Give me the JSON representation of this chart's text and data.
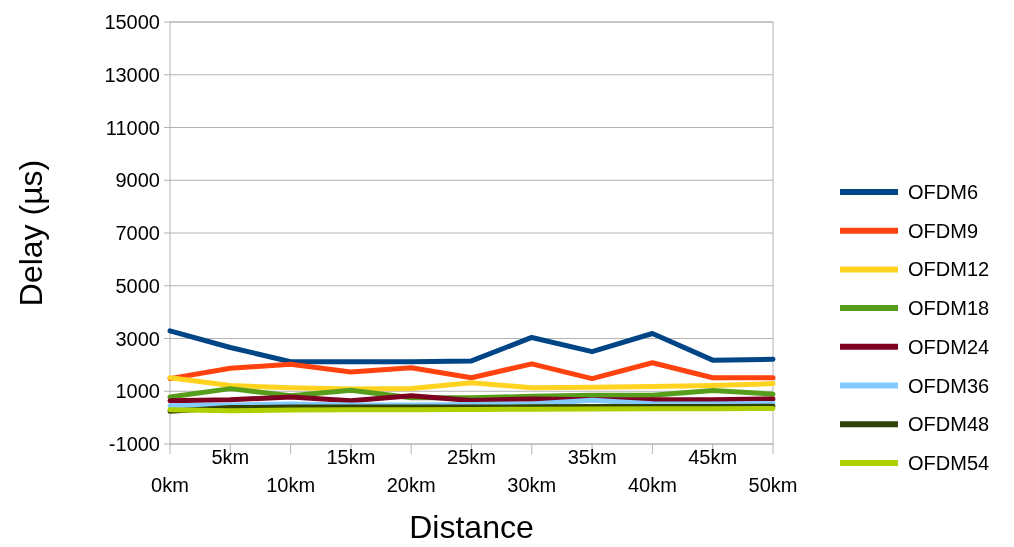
{
  "chart_data": {
    "type": "line",
    "xlabel": "Distance",
    "ylabel": "Delay (µs)",
    "categories": [
      "0km",
      "5km",
      "10km",
      "15km",
      "20km",
      "25km",
      "30km",
      "35km",
      "40km",
      "45km",
      "50km"
    ],
    "ylim": [
      -1000,
      15000
    ],
    "yticks": [
      -1000,
      1000,
      3000,
      5000,
      7000,
      9000,
      11000,
      13000,
      15000
    ],
    "grid": "y",
    "legend": "right",
    "marker": "none",
    "line_style": "solid",
    "series": [
      {
        "name": "OFDM6",
        "color": "#004586",
        "values": [
          3290,
          2660,
          2120,
          2120,
          2120,
          2150,
          3040,
          2500,
          3190,
          2180,
          2210
        ]
      },
      {
        "name": "OFDM9",
        "color": "#ff420e",
        "values": [
          1480,
          1870,
          2020,
          1730,
          1890,
          1510,
          2040,
          1480,
          2080,
          1510,
          1510
        ]
      },
      {
        "name": "OFDM12",
        "color": "#ffd320",
        "values": [
          1510,
          1220,
          1130,
          1090,
          1100,
          1320,
          1130,
          1150,
          1180,
          1220,
          1290
        ]
      },
      {
        "name": "OFDM18",
        "color": "#579d1c",
        "values": [
          780,
          1100,
          830,
          1040,
          750,
          750,
          810,
          850,
          850,
          1030,
          890
        ]
      },
      {
        "name": "OFDM24",
        "color": "#7e0021",
        "values": [
          640,
          680,
          780,
          640,
          830,
          650,
          710,
          680,
          680,
          680,
          710
        ]
      },
      {
        "name": "OFDM36",
        "color": "#83caff",
        "values": [
          450,
          480,
          520,
          480,
          480,
          500,
          520,
          660,
          530,
          520,
          540
        ]
      },
      {
        "name": "OFDM48",
        "color": "#314004",
        "values": [
          240,
          380,
          400,
          400,
          400,
          400,
          410,
          420,
          420,
          420,
          430
        ]
      },
      {
        "name": "OFDM54",
        "color": "#aecf00",
        "values": [
          300,
          260,
          290,
          300,
          300,
          310,
          320,
          330,
          340,
          340,
          350
        ]
      }
    ]
  }
}
